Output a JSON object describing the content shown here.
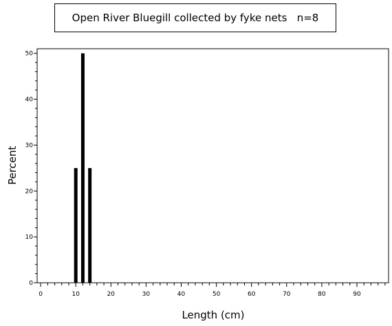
{
  "chart_data": {
    "type": "bar",
    "title": "Open River Bluegill collected by fyke nets   n=8",
    "xlabel": "Length (cm)",
    "ylabel": "Percent",
    "xlim": [
      -1,
      99
    ],
    "ylim": [
      0,
      51
    ],
    "x_ticks": [
      0,
      10,
      20,
      30,
      40,
      50,
      60,
      70,
      80,
      90
    ],
    "y_ticks": [
      0,
      10,
      20,
      30,
      40,
      50
    ],
    "bars": [
      {
        "x": 10,
        "value": 25
      },
      {
        "x": 12,
        "value": 50
      },
      {
        "x": 14,
        "value": 25
      }
    ],
    "bar_color": "#000000",
    "grid": false
  }
}
